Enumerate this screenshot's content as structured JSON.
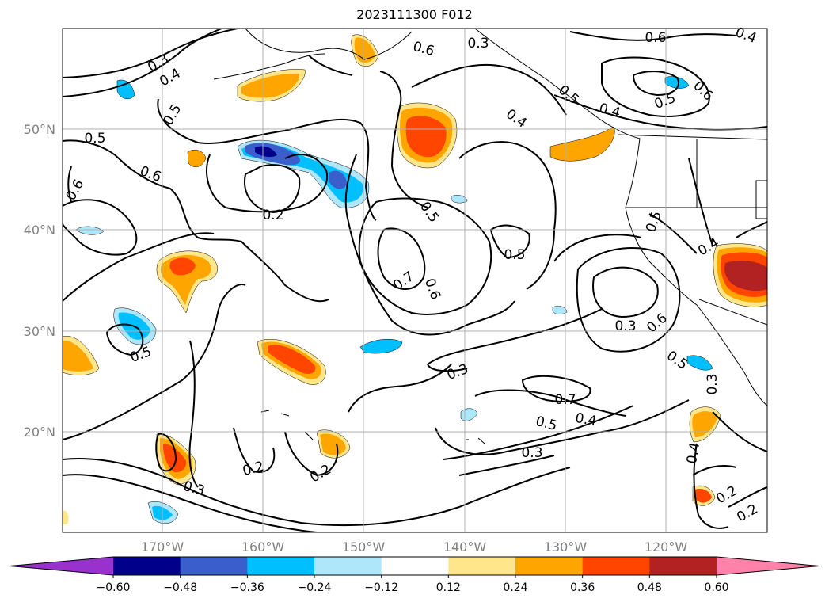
{
  "title": "2023111300 F012",
  "lat_labels": [
    "50°N",
    "40°N",
    "30°N",
    "20°N"
  ],
  "lon_labels": [
    "170°W",
    "160°W",
    "150°W",
    "140°W",
    "130°W",
    "120°W"
  ],
  "contour_labels": [
    "0.3",
    "0.4",
    "0.5",
    "0.6",
    "0.5",
    "0.2",
    "0.6",
    "0.4",
    "0.5",
    "0.7",
    "0.6",
    "0.5",
    "0.6",
    "0.3",
    "0.4",
    "0.5",
    "0.3",
    "0.3",
    "0.2",
    "0.2",
    "0.3",
    "0.6",
    "0.5",
    "0.4",
    "0.2",
    "0.2",
    "0.3",
    "0.4",
    "0.5",
    "0.6",
    "0.5",
    "0.4",
    "0.5",
    "0.7",
    "0.6",
    "0.4",
    "0.5",
    "0.3"
  ],
  "colorbar": {
    "ticks": [
      "−0.60",
      "−0.48",
      "−0.36",
      "−0.24",
      "−0.12",
      "0.12",
      "0.24",
      "0.36",
      "0.48",
      "0.60"
    ],
    "colors": [
      "#9932cc",
      "#00008b",
      "#3a5fcd",
      "#00bfff",
      "#aee6fa",
      "#ffffff",
      "#ffe68a",
      "#ffa500",
      "#ff4500",
      "#b22222",
      "#ff82ab"
    ]
  },
  "legend": {
    "fill_colors": {
      "neg_light": "#aee6fa",
      "neg_mid": "#00bfff",
      "neg_strong": "#3a5fcd",
      "neg_max": "#00008b",
      "pos_light": "#ffe68a",
      "pos_mid": "#ffa500",
      "pos_strong": "#ff4500",
      "pos_max": "#b22222"
    }
  }
}
